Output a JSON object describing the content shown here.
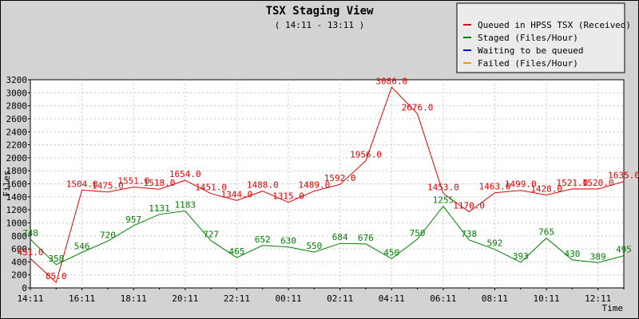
{
  "chart_data": {
    "type": "line",
    "title": "TSX Staging View",
    "subtitle": "( 14:11 - 13:11 )",
    "xlabel": "Time",
    "ylabel": "Files",
    "ylim": [
      0,
      3200
    ],
    "yticks": [
      0,
      200,
      400,
      600,
      800,
      1000,
      1200,
      1400,
      1600,
      1800,
      2000,
      2200,
      2400,
      2600,
      2800,
      3000,
      3200
    ],
    "x_ticks": [
      "14:11",
      "16:11",
      "18:11",
      "20:11",
      "22:11",
      "00:11",
      "02:11",
      "04:11",
      "06:11",
      "08:11",
      "10:11",
      "12:11"
    ],
    "grid": true,
    "legend_position": "top-right",
    "series": [
      {
        "name": "Queued in HPSS TSX (Received)",
        "color": "#e00000",
        "values": [
          451,
          85,
          1504,
          1475,
          1551,
          1518,
          1654,
          1451,
          1344,
          1488,
          1315,
          1489,
          1592,
          1956,
          3086,
          2676,
          1453,
          1170,
          1463,
          1499,
          1428,
          1521,
          1520,
          1635
        ],
        "labels": [
          "451.0",
          "85.0",
          "1504.0",
          "1475.0",
          "1551.0",
          "1518.0",
          "1654.0",
          "1451.0",
          "1344.0",
          "1488.0",
          "1315.0",
          "1489.0",
          "1592.0",
          "1956.0",
          "3086.0",
          "2676.0",
          "1453.0",
          "1170.0",
          "1463.0",
          "1499.0",
          "1428.0",
          "1521.0",
          "1520.0",
          "1635.0"
        ]
      },
      {
        "name": "Staged (Files/Hour)",
        "color": "#008000",
        "values": [
          748,
          358,
          546,
          720,
          957,
          1131,
          1183,
          727,
          465,
          652,
          630,
          550,
          684,
          676,
          450,
          750,
          1255,
          738,
          592,
          393,
          765,
          430,
          389,
          495
        ],
        "labels": [
          "748",
          "358",
          "546",
          "720",
          "957",
          "1131",
          "1183",
          "727",
          "465",
          "652",
          "630",
          "550",
          "684",
          "676",
          "450",
          "750",
          "1255",
          "738",
          "592",
          "393",
          "765",
          "430",
          "389",
          "495"
        ]
      },
      {
        "name": "Waiting to be queued",
        "color": "#0000e0",
        "values": []
      },
      {
        "name": "Failed (Files/Hour)",
        "color": "#ff9900",
        "values": []
      }
    ]
  }
}
